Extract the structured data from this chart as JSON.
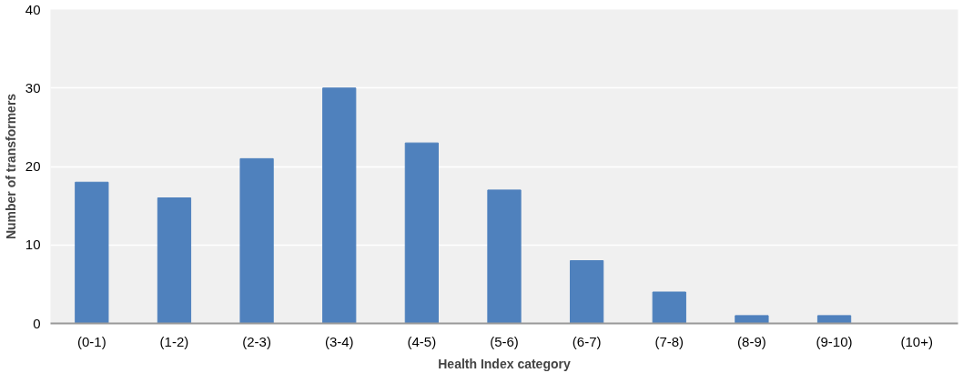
{
  "chart_data": {
    "type": "bar",
    "xlabel": "Health Index category",
    "ylabel": "Number of transformers",
    "categories": [
      "(0-1)",
      "(1-2)",
      "(2-3)",
      "(3-4)",
      "(4-5)",
      "(5-6)",
      "(6-7)",
      "(7-8)",
      "(8-9)",
      "(9-10)",
      "(10+)"
    ],
    "values": [
      18,
      16,
      21,
      30,
      23,
      17,
      8,
      4,
      1,
      1,
      0
    ],
    "color": "#4f81bd",
    "ylim": [
      0,
      40
    ],
    "yticks": [
      0,
      10,
      20,
      30,
      40
    ],
    "grid": "y"
  }
}
